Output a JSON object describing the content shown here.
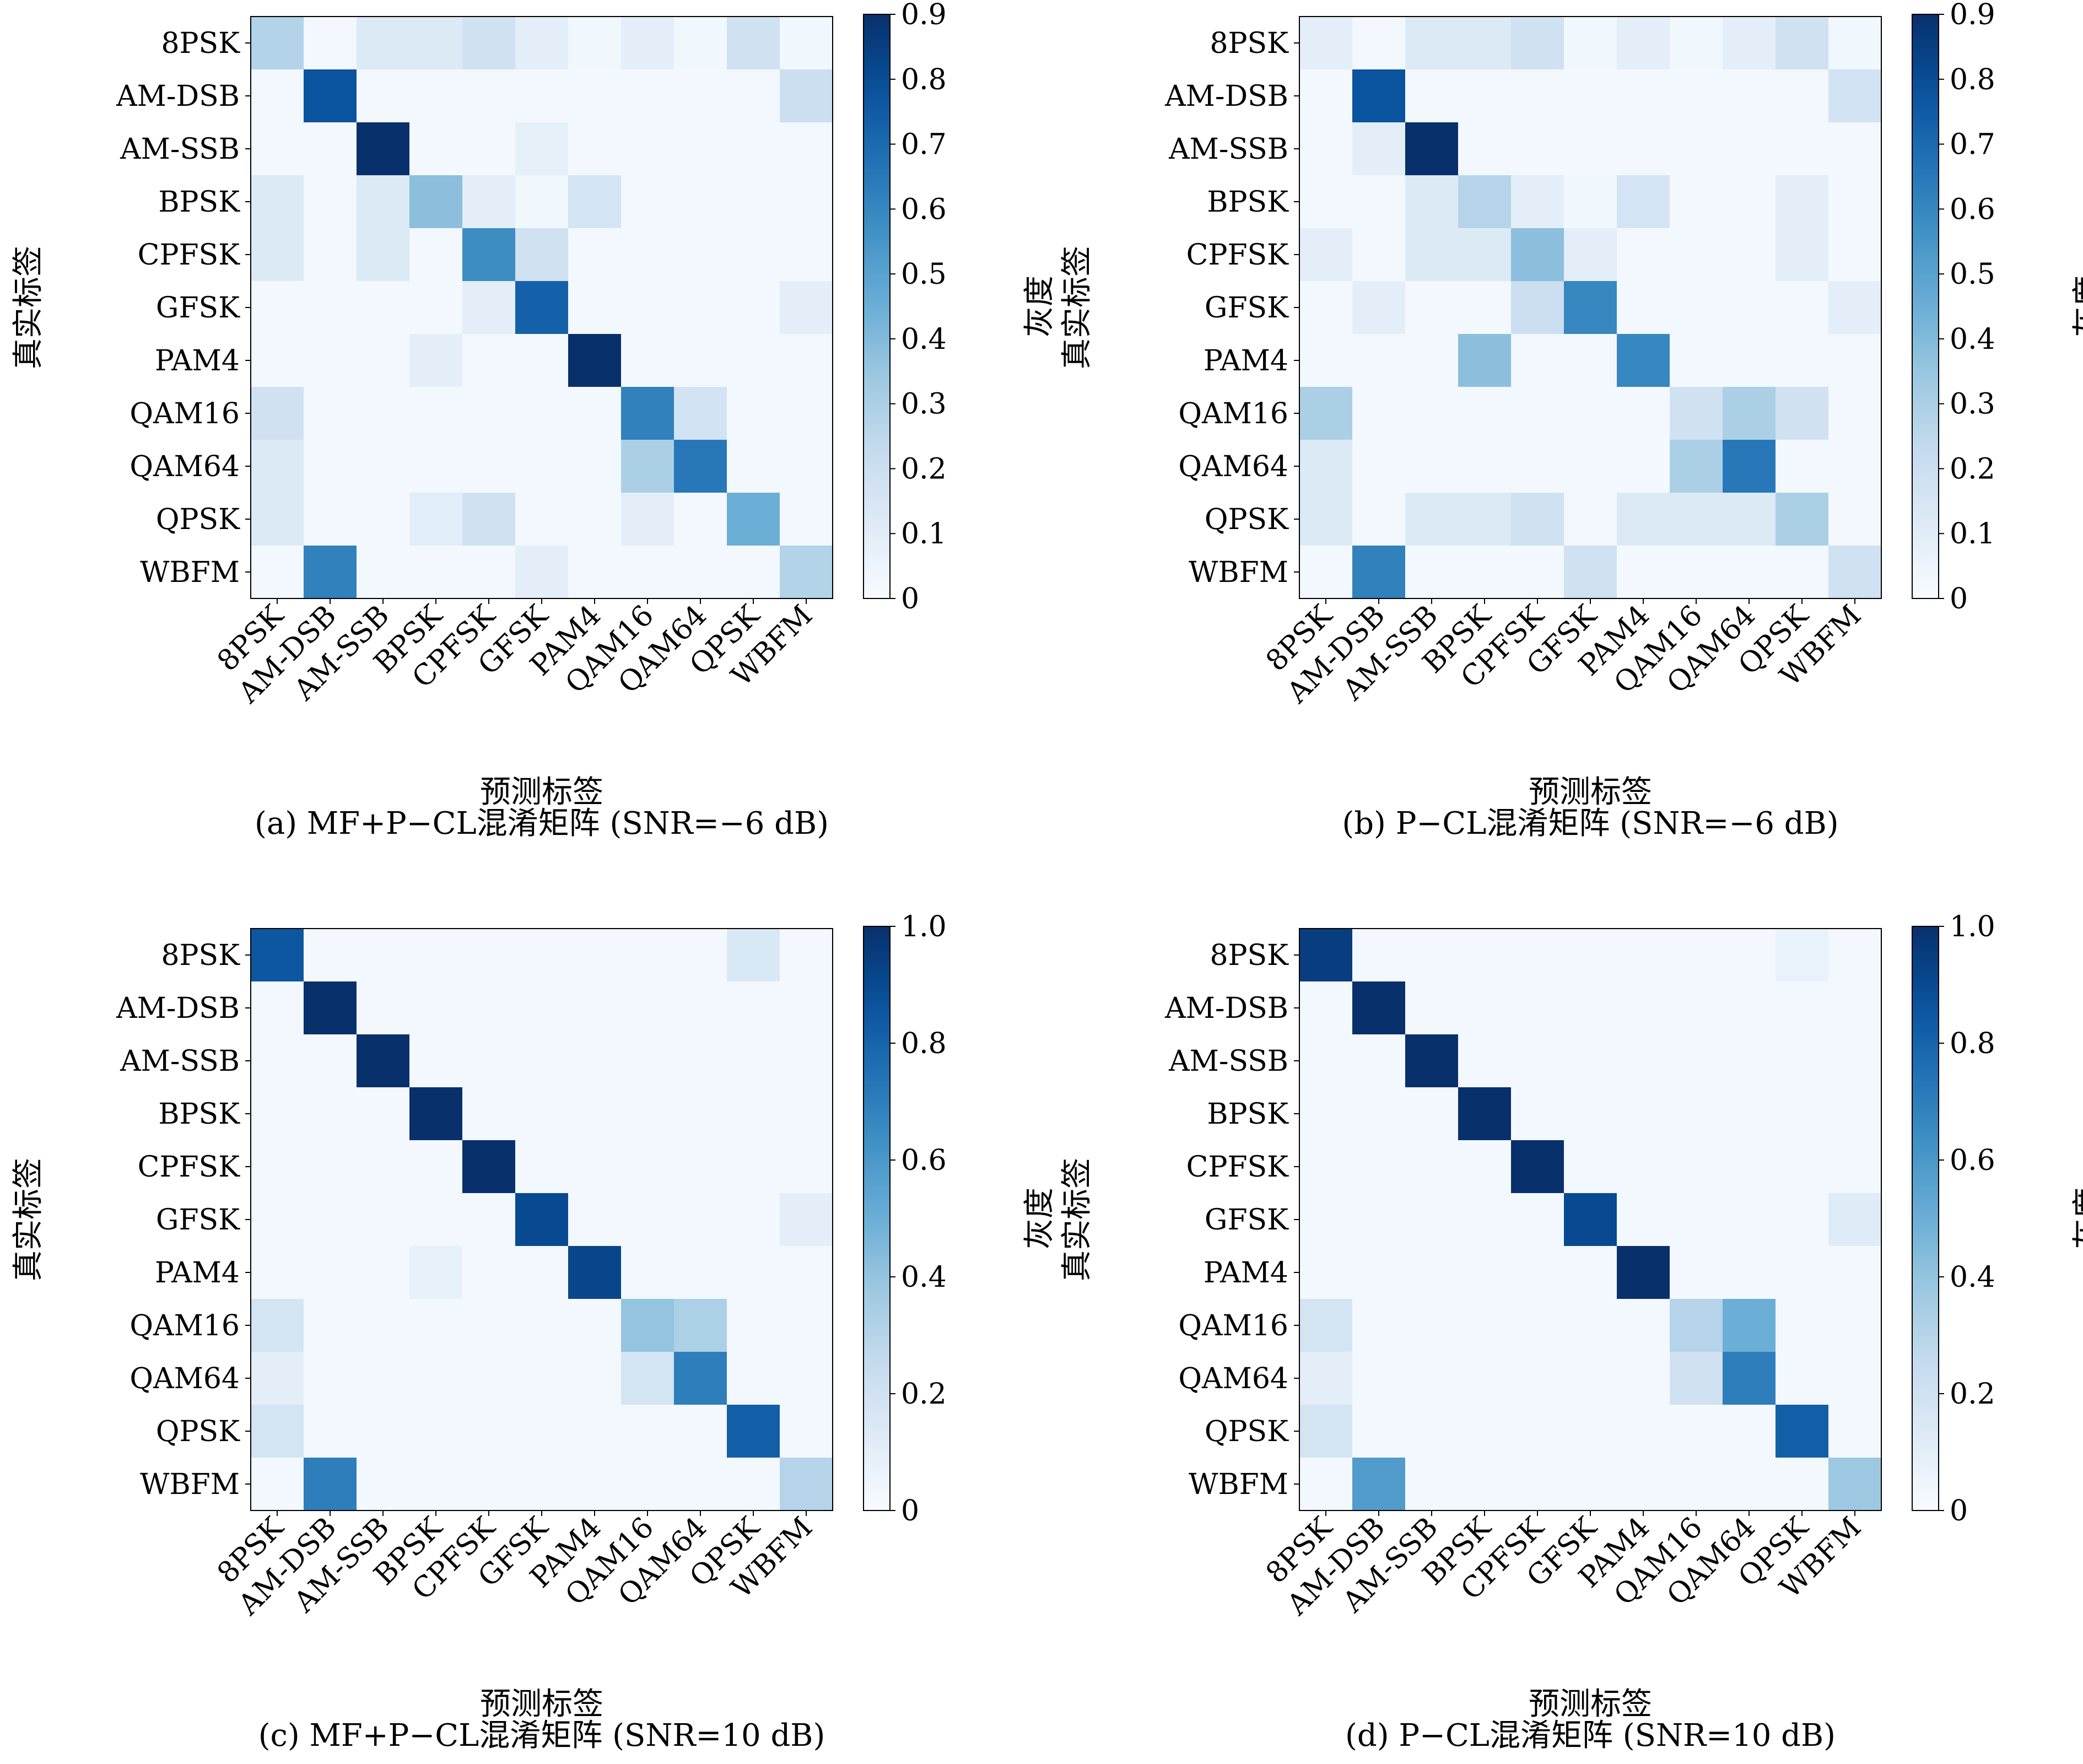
{
  "chart_data": [
    {
      "type": "heatmap",
      "caption": "(a) MF+P−CL混淆矩阵 (SNR=−6 dB)",
      "xlabel": "预测标签",
      "ylabel": "真实标签",
      "colorbar_label": "灰度",
      "colormap": "Blues",
      "vmax": 0.9,
      "colorbar_ticks": [
        "0",
        "0.1",
        "0.2",
        "0.3",
        "0.4",
        "0.5",
        "0.6",
        "0.7",
        "0.8",
        "0.9"
      ],
      "categories": [
        "8PSK",
        "AM-DSB",
        "AM-SSB",
        "BPSK",
        "CPFSK",
        "GFSK",
        "PAM4",
        "QAM16",
        "QAM64",
        "QPSK",
        "WBFM"
      ],
      "matrix": [
        [
          0.28,
          0.02,
          0.12,
          0.12,
          0.18,
          0.09,
          0.03,
          0.09,
          0.03,
          0.18,
          0.03
        ],
        [
          0.02,
          0.78,
          0.02,
          0.02,
          0.02,
          0.02,
          0.02,
          0.02,
          0.02,
          0.02,
          0.2
        ],
        [
          0.02,
          0.02,
          0.9,
          0.02,
          0.02,
          0.08,
          0.02,
          0.02,
          0.02,
          0.02,
          0.02
        ],
        [
          0.12,
          0.02,
          0.12,
          0.38,
          0.09,
          0.03,
          0.16,
          0.02,
          0.02,
          0.02,
          0.02
        ],
        [
          0.12,
          0.02,
          0.12,
          0.02,
          0.58,
          0.18,
          0.02,
          0.02,
          0.02,
          0.02,
          0.02
        ],
        [
          0.02,
          0.02,
          0.02,
          0.02,
          0.09,
          0.73,
          0.02,
          0.02,
          0.02,
          0.02,
          0.09
        ],
        [
          0.02,
          0.02,
          0.02,
          0.09,
          0.02,
          0.02,
          0.9,
          0.02,
          0.02,
          0.02,
          0.02
        ],
        [
          0.18,
          0.02,
          0.02,
          0.02,
          0.02,
          0.02,
          0.02,
          0.62,
          0.17,
          0.02,
          0.02
        ],
        [
          0.12,
          0.02,
          0.02,
          0.02,
          0.02,
          0.02,
          0.02,
          0.3,
          0.65,
          0.02,
          0.02
        ],
        [
          0.12,
          0.02,
          0.02,
          0.1,
          0.18,
          0.02,
          0.02,
          0.09,
          0.02,
          0.45,
          0.02
        ],
        [
          0.02,
          0.62,
          0.02,
          0.02,
          0.02,
          0.09,
          0.02,
          0.02,
          0.02,
          0.02,
          0.28
        ]
      ]
    },
    {
      "type": "heatmap",
      "caption": "(b) P−CL混淆矩阵 (SNR=−6 dB)",
      "xlabel": "预测标签",
      "ylabel": "真实标签",
      "colorbar_label": "灰度",
      "colormap": "Blues",
      "vmax": 0.9,
      "colorbar_ticks": [
        "0",
        "0.1",
        "0.2",
        "0.3",
        "0.4",
        "0.5",
        "0.6",
        "0.7",
        "0.8",
        "0.9"
      ],
      "categories": [
        "8PSK",
        "AM-DSB",
        "AM-SSB",
        "BPSK",
        "CPFSK",
        "GFSK",
        "PAM4",
        "QAM16",
        "QAM64",
        "QPSK",
        "WBFM"
      ],
      "matrix": [
        [
          0.09,
          0.02,
          0.12,
          0.12,
          0.18,
          0.03,
          0.09,
          0.03,
          0.09,
          0.18,
          0.03
        ],
        [
          0.02,
          0.78,
          0.02,
          0.02,
          0.02,
          0.02,
          0.02,
          0.02,
          0.02,
          0.02,
          0.17
        ],
        [
          0.02,
          0.09,
          0.9,
          0.02,
          0.02,
          0.02,
          0.02,
          0.02,
          0.02,
          0.02,
          0.02
        ],
        [
          0.02,
          0.02,
          0.12,
          0.27,
          0.09,
          0.03,
          0.16,
          0.02,
          0.02,
          0.09,
          0.02
        ],
        [
          0.09,
          0.02,
          0.12,
          0.12,
          0.38,
          0.09,
          0.02,
          0.02,
          0.02,
          0.09,
          0.02
        ],
        [
          0.02,
          0.09,
          0.02,
          0.02,
          0.2,
          0.6,
          0.02,
          0.02,
          0.02,
          0.02,
          0.09
        ],
        [
          0.02,
          0.02,
          0.02,
          0.38,
          0.02,
          0.02,
          0.6,
          0.02,
          0.02,
          0.02,
          0.02
        ],
        [
          0.3,
          0.02,
          0.02,
          0.02,
          0.02,
          0.02,
          0.02,
          0.18,
          0.3,
          0.18,
          0.02
        ],
        [
          0.12,
          0.02,
          0.02,
          0.02,
          0.02,
          0.02,
          0.02,
          0.3,
          0.65,
          0.02,
          0.02
        ],
        [
          0.12,
          0.02,
          0.12,
          0.12,
          0.18,
          0.02,
          0.12,
          0.12,
          0.12,
          0.3,
          0.02
        ],
        [
          0.02,
          0.62,
          0.02,
          0.02,
          0.02,
          0.18,
          0.02,
          0.02,
          0.02,
          0.02,
          0.18
        ]
      ]
    },
    {
      "type": "heatmap",
      "caption": "(c) MF+P−CL混淆矩阵 (SNR=10 dB)",
      "xlabel": "预测标签",
      "ylabel": "真实标签",
      "colorbar_label": "灰度",
      "colormap": "Blues",
      "vmax": 1.0,
      "colorbar_ticks": [
        "0",
        "0.2",
        "0.4",
        "0.6",
        "0.8",
        "1.0"
      ],
      "categories": [
        "8PSK",
        "AM-DSB",
        "AM-SSB",
        "BPSK",
        "CPFSK",
        "GFSK",
        "PAM4",
        "QAM16",
        "QAM64",
        "QPSK",
        "WBFM"
      ],
      "matrix": [
        [
          0.85,
          0.02,
          0.02,
          0.02,
          0.02,
          0.02,
          0.02,
          0.02,
          0.02,
          0.15,
          0.02
        ],
        [
          0.02,
          1.0,
          0.02,
          0.02,
          0.02,
          0.02,
          0.02,
          0.02,
          0.02,
          0.02,
          0.02
        ],
        [
          0.02,
          0.02,
          1.0,
          0.02,
          0.02,
          0.02,
          0.02,
          0.02,
          0.02,
          0.02,
          0.02
        ],
        [
          0.02,
          0.02,
          0.02,
          1.0,
          0.02,
          0.02,
          0.02,
          0.02,
          0.02,
          0.02,
          0.02
        ],
        [
          0.02,
          0.02,
          0.02,
          0.02,
          1.0,
          0.02,
          0.02,
          0.02,
          0.02,
          0.02,
          0.02
        ],
        [
          0.02,
          0.02,
          0.02,
          0.02,
          0.02,
          0.9,
          0.02,
          0.02,
          0.02,
          0.02,
          0.1
        ],
        [
          0.02,
          0.02,
          0.02,
          0.08,
          0.02,
          0.02,
          0.92,
          0.02,
          0.02,
          0.02,
          0.02
        ],
        [
          0.18,
          0.02,
          0.02,
          0.02,
          0.02,
          0.02,
          0.02,
          0.4,
          0.33,
          0.02,
          0.02
        ],
        [
          0.1,
          0.02,
          0.02,
          0.02,
          0.02,
          0.02,
          0.02,
          0.18,
          0.7,
          0.02,
          0.02
        ],
        [
          0.18,
          0.02,
          0.02,
          0.02,
          0.02,
          0.02,
          0.02,
          0.02,
          0.02,
          0.82,
          0.02
        ],
        [
          0.02,
          0.7,
          0.02,
          0.02,
          0.02,
          0.02,
          0.02,
          0.02,
          0.02,
          0.02,
          0.3
        ]
      ]
    },
    {
      "type": "heatmap",
      "caption": "(d) P−CL混淆矩阵 (SNR=10 dB)",
      "xlabel": "预测标签",
      "ylabel": "真实标签",
      "colorbar_label": "灰度",
      "colormap": "Blues",
      "vmax": 1.0,
      "colorbar_ticks": [
        "0",
        "0.2",
        "0.4",
        "0.6",
        "0.8",
        "1.0"
      ],
      "categories": [
        "8PSK",
        "AM-DSB",
        "AM-SSB",
        "BPSK",
        "CPFSK",
        "GFSK",
        "PAM4",
        "QAM16",
        "QAM64",
        "QPSK",
        "WBFM"
      ],
      "matrix": [
        [
          0.95,
          0.02,
          0.02,
          0.02,
          0.02,
          0.02,
          0.02,
          0.02,
          0.02,
          0.07,
          0.02
        ],
        [
          0.02,
          1.0,
          0.02,
          0.02,
          0.02,
          0.02,
          0.02,
          0.02,
          0.02,
          0.02,
          0.02
        ],
        [
          0.02,
          0.02,
          1.0,
          0.02,
          0.02,
          0.02,
          0.02,
          0.02,
          0.02,
          0.02,
          0.02
        ],
        [
          0.02,
          0.02,
          0.02,
          1.0,
          0.02,
          0.02,
          0.02,
          0.02,
          0.02,
          0.02,
          0.02
        ],
        [
          0.02,
          0.02,
          0.02,
          0.02,
          1.0,
          0.02,
          0.02,
          0.02,
          0.02,
          0.02,
          0.02
        ],
        [
          0.02,
          0.02,
          0.02,
          0.02,
          0.02,
          0.9,
          0.02,
          0.02,
          0.02,
          0.02,
          0.12
        ],
        [
          0.02,
          0.02,
          0.02,
          0.02,
          0.02,
          0.02,
          1.0,
          0.02,
          0.02,
          0.02,
          0.02
        ],
        [
          0.18,
          0.02,
          0.02,
          0.02,
          0.02,
          0.02,
          0.02,
          0.3,
          0.5,
          0.02,
          0.02
        ],
        [
          0.1,
          0.02,
          0.02,
          0.02,
          0.02,
          0.02,
          0.02,
          0.2,
          0.7,
          0.02,
          0.02
        ],
        [
          0.18,
          0.02,
          0.02,
          0.02,
          0.02,
          0.02,
          0.02,
          0.02,
          0.02,
          0.82,
          0.02
        ],
        [
          0.02,
          0.58,
          0.02,
          0.02,
          0.02,
          0.02,
          0.02,
          0.02,
          0.02,
          0.02,
          0.38
        ]
      ]
    }
  ]
}
